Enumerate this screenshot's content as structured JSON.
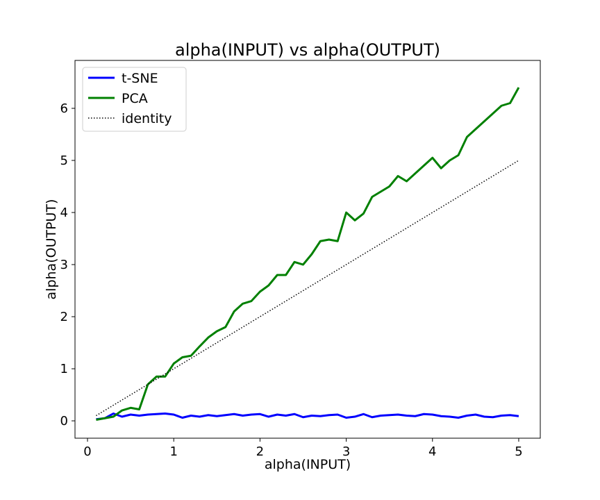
{
  "chart_data": {
    "type": "line",
    "title": "alpha(INPUT) vs alpha(OUTPUT)",
    "xlabel": "alpha(INPUT)",
    "ylabel": "alpha(OUTPUT)",
    "x": [
      0.1,
      0.2,
      0.3,
      0.4,
      0.5,
      0.6,
      0.7,
      0.8,
      0.9,
      1.0,
      1.1,
      1.2,
      1.3,
      1.4,
      1.5,
      1.6,
      1.7,
      1.8,
      1.9,
      2.0,
      2.1,
      2.2,
      2.3,
      2.4,
      2.5,
      2.6,
      2.7,
      2.8,
      2.9,
      3.0,
      3.1,
      3.2,
      3.3,
      3.4,
      3.5,
      3.6,
      3.7,
      3.8,
      3.9,
      4.0,
      4.1,
      4.2,
      4.3,
      4.4,
      4.5,
      4.6,
      4.7,
      4.8,
      4.9,
      5.0
    ],
    "series": [
      {
        "name": "t-SNE",
        "color": "#0000ff",
        "linestyle": "solid",
        "values": [
          0.03,
          0.05,
          0.14,
          0.08,
          0.12,
          0.1,
          0.12,
          0.13,
          0.14,
          0.12,
          0.06,
          0.1,
          0.08,
          0.11,
          0.09,
          0.11,
          0.13,
          0.1,
          0.12,
          0.13,
          0.08,
          0.12,
          0.1,
          0.13,
          0.07,
          0.1,
          0.09,
          0.11,
          0.12,
          0.06,
          0.08,
          0.13,
          0.07,
          0.1,
          0.11,
          0.12,
          0.1,
          0.09,
          0.13,
          0.12,
          0.09,
          0.08,
          0.06,
          0.1,
          0.12,
          0.08,
          0.07,
          0.1,
          0.11,
          0.09
        ]
      },
      {
        "name": "PCA",
        "color": "#008000",
        "linestyle": "solid",
        "values": [
          0.02,
          0.05,
          0.08,
          0.2,
          0.25,
          0.22,
          0.7,
          0.85,
          0.85,
          1.1,
          1.22,
          1.25,
          1.43,
          1.6,
          1.72,
          1.8,
          2.1,
          2.25,
          2.3,
          2.48,
          2.6,
          2.8,
          2.8,
          3.05,
          3.0,
          3.2,
          3.45,
          3.48,
          3.45,
          4.0,
          3.85,
          3.98,
          4.3,
          4.4,
          4.5,
          4.7,
          4.6,
          4.75,
          4.9,
          5.05,
          4.85,
          5.0,
          5.1,
          5.45,
          5.6,
          5.75,
          5.9,
          6.05,
          6.1,
          6.4
        ]
      },
      {
        "name": "identity",
        "color": "#000000",
        "linestyle": "dotted",
        "values": [
          0.1,
          0.2,
          0.3,
          0.4,
          0.5,
          0.6,
          0.7,
          0.8,
          0.9,
          1.0,
          1.1,
          1.2,
          1.3,
          1.4,
          1.5,
          1.6,
          1.7,
          1.8,
          1.9,
          2.0,
          2.1,
          2.2,
          2.3,
          2.4,
          2.5,
          2.6,
          2.7,
          2.8,
          2.9,
          3.0,
          3.1,
          3.2,
          3.3,
          3.4,
          3.5,
          3.6,
          3.7,
          3.8,
          3.9,
          4.0,
          4.1,
          4.2,
          4.3,
          4.4,
          4.5,
          4.6,
          4.7,
          4.8,
          4.9,
          5.0
        ]
      }
    ],
    "xlim": [
      -0.145,
      5.25
    ],
    "ylim": [
      -0.333,
      6.92
    ],
    "xticks": [
      0,
      1,
      2,
      3,
      4,
      5
    ],
    "yticks": [
      0,
      1,
      2,
      3,
      4,
      5,
      6
    ],
    "legend": "upper left",
    "grid": false
  }
}
